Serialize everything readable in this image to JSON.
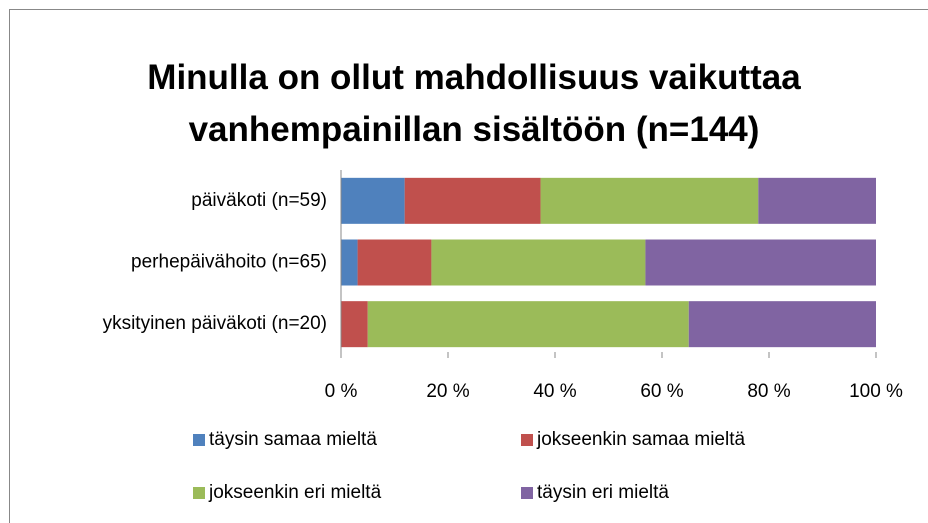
{
  "chart_data": {
    "type": "stacked_bar_horizontal",
    "title": "Minulla on ollut mahdollisuus vaikuttaa vanhempainillan sisältöön (n=144)",
    "categories": [
      "päiväkoti (n=59)",
      "perhepäivähoito (n=65)",
      "yksityinen päiväkoti (n=20)"
    ],
    "series": [
      {
        "name": "täysin samaa mieltä",
        "color": "#4f81bd",
        "values": [
          11.9,
          3.1,
          0
        ]
      },
      {
        "name": "jokseenkin samaa mieltä",
        "color": "#c0504d",
        "values": [
          25.4,
          13.8,
          5
        ]
      },
      {
        "name": "jokseenkin eri mieltä",
        "color": "#9bbb59",
        "values": [
          40.7,
          40.0,
          60
        ]
      },
      {
        "name": "täysin eri mieltä",
        "color": "#8064a2",
        "values": [
          22.0,
          43.1,
          35
        ]
      }
    ],
    "xlim": [
      0,
      100
    ],
    "xticks": [
      {
        "value": 0,
        "label": "0 %"
      },
      {
        "value": 20,
        "label": "20 %"
      },
      {
        "value": 40,
        "label": "40 %"
      },
      {
        "value": 60,
        "label": "60 %"
      },
      {
        "value": 80,
        "label": "80 %"
      },
      {
        "value": 100,
        "label": "100 %"
      }
    ],
    "legend": "bottom"
  }
}
